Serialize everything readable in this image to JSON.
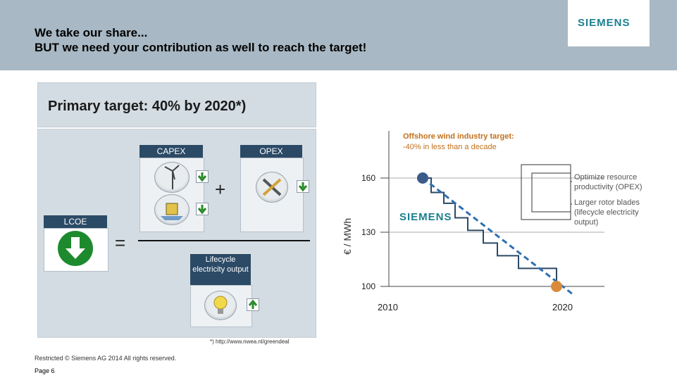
{
  "header": {
    "title": "We take our share...\nBUT we need your contribution as well to reach the target!",
    "logo": "SIEMENS"
  },
  "target": {
    "text": "Primary target: 40%  by 2020*)"
  },
  "formula": {
    "capex": "CAPEX",
    "opex": "OPEX",
    "lcoe": "LCOE",
    "plus": "+",
    "equals": "=",
    "lifecycle": "Lifecycle electricity output",
    "icons": [
      "wind-turbine-icon",
      "foundation-icon",
      "tools-icon",
      "light-bulb-icon",
      "arrow-down-icon",
      "arrow-up-icon"
    ]
  },
  "footer": {
    "footnote": "*)  http://www.nwea.nl/greendeal",
    "copyright": "Restricted © Siemens AG 2014 All rights reserved.",
    "page": "Page 6"
  },
  "chart_data": {
    "type": "line",
    "ylabel": "€ / MWh",
    "x_ticks": [
      "2010",
      "2020"
    ],
    "y_ticks": [
      160,
      130,
      100
    ],
    "ylim": [
      100,
      160
    ],
    "target_title": "Offshore wind industry target:",
    "target_sub": "-40% in less than a decade",
    "annotations": [
      "Optimize resource productivity (OPEX)",
      "Larger rotor blades (lifecycle electricity output)"
    ],
    "logo": "SIEMENS",
    "series": [
      {
        "type": "step",
        "color": "#2b4a66",
        "points": [
          [
            2010,
            160
          ],
          [
            2010.6,
            160
          ],
          [
            2010.6,
            152
          ],
          [
            2011.5,
            152
          ],
          [
            2011.5,
            146
          ],
          [
            2012.3,
            146
          ],
          [
            2012.3,
            138
          ],
          [
            2013.2,
            138
          ],
          [
            2013.2,
            131
          ],
          [
            2014.3,
            131
          ],
          [
            2014.3,
            124
          ],
          [
            2015.3,
            124
          ],
          [
            2015.3,
            117
          ],
          [
            2016.8,
            117
          ],
          [
            2016.8,
            110
          ],
          [
            2019.5,
            110
          ],
          [
            2019.5,
            100
          ]
        ]
      },
      {
        "type": "dashed",
        "color": "#2e6fb0",
        "points": [
          [
            2010,
            160
          ],
          [
            2020.6,
            96
          ]
        ]
      }
    ],
    "markers": [
      {
        "x": 2010,
        "y": 160,
        "color": "#3b5b8a"
      },
      {
        "x": 2019.5,
        "y": 100,
        "color": "#d98b3a"
      }
    ]
  }
}
